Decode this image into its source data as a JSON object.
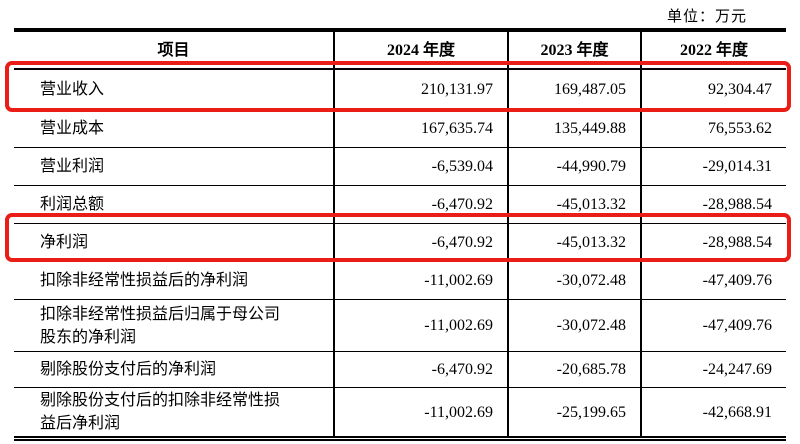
{
  "unit_label": "单位：万元",
  "colors": {
    "highlight_red": "#ea1d17",
    "border_black": "#000000",
    "background": "#ffffff"
  },
  "table": {
    "columns": [
      "项目",
      "2024 年度",
      "2023 年度",
      "2022 年度"
    ],
    "rows": [
      {
        "label": "营业收入",
        "y2024": "210,131.97",
        "y2023": "169,487.05",
        "y2022": "92,304.47",
        "highlighted": true
      },
      {
        "label": "营业成本",
        "y2024": "167,635.74",
        "y2023": "135,449.88",
        "y2022": "76,553.62",
        "highlighted": false
      },
      {
        "label": "营业利润",
        "y2024": "-6,539.04",
        "y2023": "-44,990.79",
        "y2022": "-29,014.31",
        "highlighted": false
      },
      {
        "label": "利润总额",
        "y2024": "-6,470.92",
        "y2023": "-45,013.32",
        "y2022": "-28,988.54",
        "highlighted": false
      },
      {
        "label": "净利润",
        "y2024": "-6,470.92",
        "y2023": "-45,013.32",
        "y2022": "-28,988.54",
        "highlighted": true
      },
      {
        "label": "扣除非经常性损益后的净利润",
        "y2024": "-11,002.69",
        "y2023": "-30,072.48",
        "y2022": "-47,409.76",
        "highlighted": false
      },
      {
        "label": "扣除非经常性损益后归属于母公司\n股东的净利润",
        "y2024": "-11,002.69",
        "y2023": "-30,072.48",
        "y2022": "-47,409.76",
        "highlighted": false
      },
      {
        "label": "剔除股份支付后的净利润",
        "y2024": "-6,470.92",
        "y2023": "-20,685.78",
        "y2022": "-24,247.69",
        "highlighted": false
      },
      {
        "label": "剔除股份支付后的扣除非经常性损\n益后净利润",
        "y2024": "-11,002.69",
        "y2023": "-25,199.65",
        "y2022": "-42,668.91",
        "highlighted": false
      }
    ]
  }
}
